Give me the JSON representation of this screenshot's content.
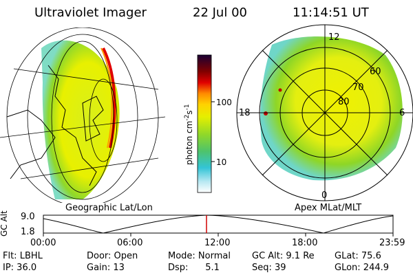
{
  "header": {
    "instrument": "Ultraviolet Imager",
    "date": "22 Jul 00",
    "time": "11:14:51 UT"
  },
  "colorbar": {
    "units_prefix": "photon cm",
    "units_exp1": "-2",
    "units_mid": "s",
    "units_exp2": "-1",
    "tick_100": "100",
    "tick_10": "10"
  },
  "left_panel": {
    "label": "Geographic Lat/Lon"
  },
  "right_panel": {
    "label": "Apex MLat/MLT",
    "mlt_top": "12",
    "mlt_left": "18",
    "mlt_right": "6",
    "mlt_bottom": "0",
    "lat_60": "60",
    "lat_70": "70",
    "lat_80": "80"
  },
  "timeline": {
    "axis_label_line1": "GC",
    "axis_label_line2": "Alt",
    "y_top": "9.0",
    "y_bottom": "1.8",
    "ticks": [
      "00:00",
      "06:00",
      "12:00",
      "18:00",
      "23:59"
    ]
  },
  "info": {
    "flt": "Flt: LBHL",
    "ip": "IP: 36.0",
    "door": "Door: Open",
    "gain": "Gain: 13",
    "mode": "Mode: Normal",
    "dsp": "Dsp:      5.1",
    "gcalt": "GC Alt: 9.1 Re",
    "seq": "Seq: 39",
    "glat": "GLat: 75.6",
    "glon": "GLon: 244.9"
  },
  "colors": {
    "aurora_yellow": "#e8f000",
    "aurora_green": "#7ed321",
    "aurora_cyan": "#6fd6c8",
    "hot_red": "#d10000",
    "marker_red": "#c00000"
  }
}
